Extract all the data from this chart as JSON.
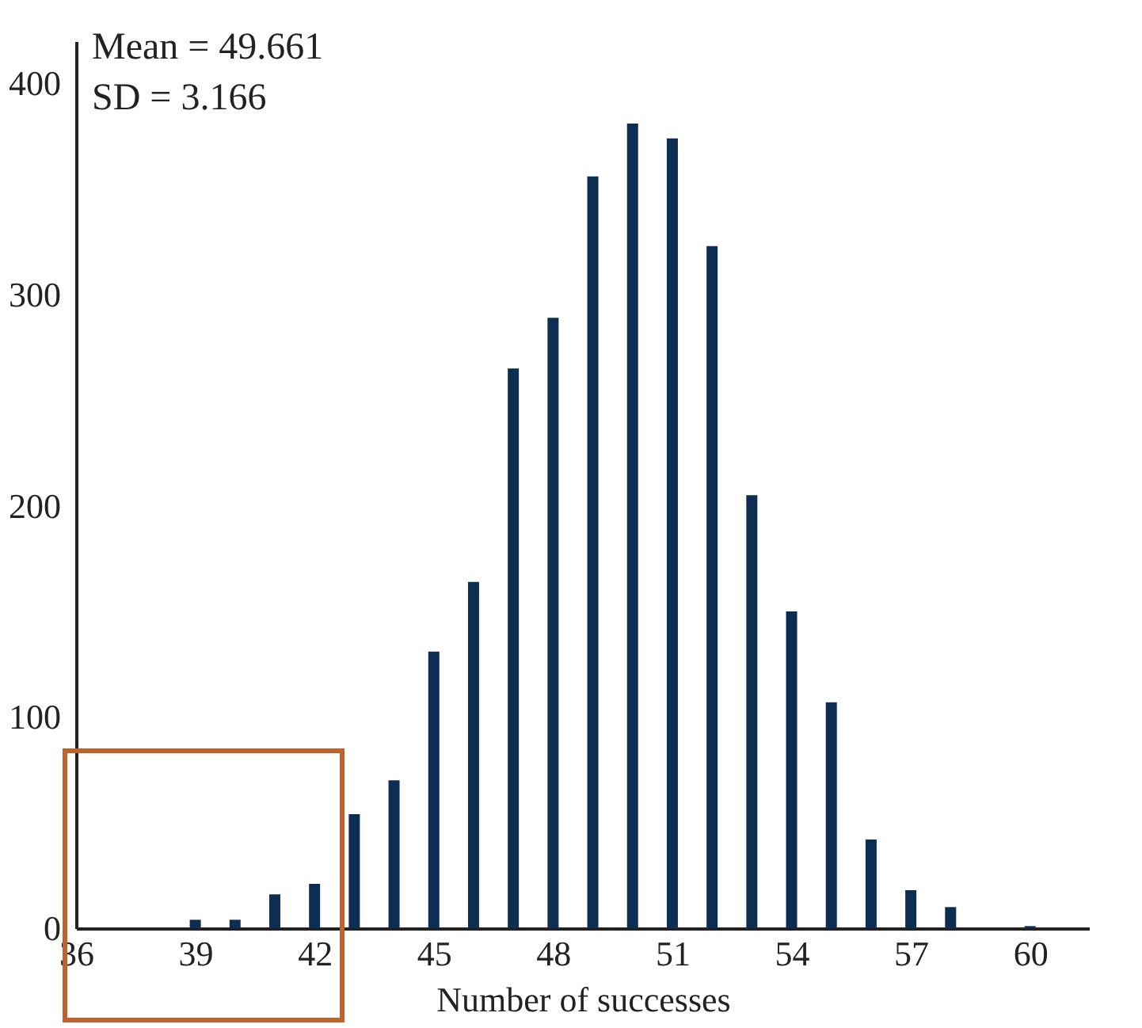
{
  "chart_data": {
    "type": "bar",
    "xlabel": "Number of successes",
    "x": [
      39,
      40,
      41,
      42,
      43,
      44,
      45,
      46,
      47,
      48,
      49,
      50,
      51,
      52,
      53,
      54,
      55,
      56,
      57,
      58,
      60
    ],
    "values": [
      4,
      4,
      16,
      21,
      54,
      70,
      131,
      164,
      265,
      289,
      356,
      381,
      374,
      323,
      205,
      150,
      107,
      42,
      18,
      10,
      1
    ],
    "color": "#0d2d52",
    "xlim": [
      36,
      61.5
    ],
    "xticks": [
      36,
      39,
      42,
      45,
      48,
      51,
      54,
      57,
      60
    ],
    "ylim": [
      0,
      420
    ],
    "yticks": [
      0,
      100,
      200,
      300,
      400
    ],
    "grid": false,
    "annotations": [
      "Mean = 49.661",
      "SD = 3.166"
    ]
  }
}
